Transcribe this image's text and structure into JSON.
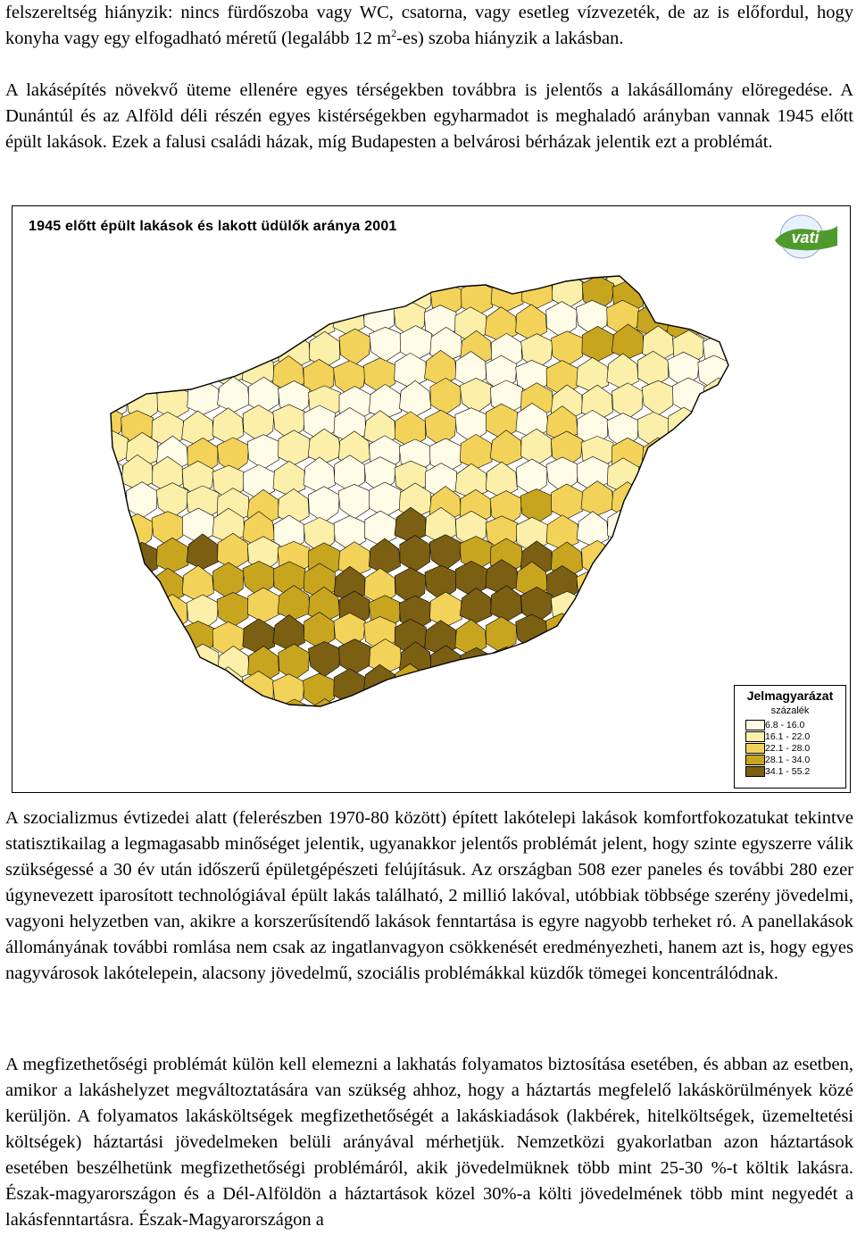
{
  "paragraphs": {
    "p1_a": "felszereltség hiányzik: nincs fürdőszoba vagy WC, csatorna, vagy esetleg vízvezeték, de az is előfordul, hogy konyha vagy egy elfogadható méretű (legalább 12 m",
    "p1_sup": "2",
    "p1_b": "-es) szoba hiányzik a lakásban.",
    "p2": "A lakásépítés növekvő üteme ellenére egyes térségekben továbbra is jelentős a lakásállomány elöregedése. A Dunántúl és az Alföld déli részén egyes kistérségekben egyharmadot is meghaladó arányban vannak 1945 előtt épült lakások. Ezek a falusi családi házak, míg Budapesten a belvárosi bérházak jelentik ezt a problémát.",
    "p3": "A szocializmus évtizedei alatt (felerészben 1970-80 között) épített lakótelepi lakások komfortfokozatukat tekintve statisztikailag a legmagasabb minőséget jelentik, ugyanakkor jelentős problémát jelent, hogy szinte egyszerre válik szükségessé a 30 év után időszerű épületgépészeti felújításuk. Az országban 508 ezer paneles és további 280 ezer úgynevezett iparosított technológiával épült lakás található, 2 millió lakóval, utóbbiak többsége szerény jövedelmi, vagyoni helyzetben van, akikre a korszerűsítendő lakások fenntartása is egyre nagyobb terheket ró. A panellakások állományának további romlása nem csak az ingatlanvagyon csökkenését eredményezheti, hanem azt is, hogy egyes nagyvárosok lakótelepein, alacsony jövedelmű, szociális problémákkal küzdők tömegei koncentrálódnak.",
    "p4": "A megfizethetőségi problémát külön kell elemezni a lakhatás folyamatos biztosítása esetében, és abban az esetben, amikor a lakáshelyzet megváltoztatására van szükség ahhoz, hogy a háztartás megfelelő lakáskörülmények közé kerüljön. A folyamatos lakásköltségek megfizethetőségét a lakáskiadások (lakbérek, hitelköltségek, üzemeltetési költségek) háztartási jövedelmeken belüli arányával mérhetjük. Nemzetközi gyakorlatban azon háztartások esetében beszélhetünk megfizethetőségi problémáról, akik jövedelmüknek több mint 25-30 %-t költik lakásra. Észak-magyarországon és a Dél-Alföldön a háztartások közel 30%-a költi jövedelmének több mint negyedét a lakásfenntartásra. Észak-Magyarországon a"
  },
  "map": {
    "title": "1945 előtt épült lakások és lakott üdülők aránya 2001",
    "logo_text": "vati",
    "legend": {
      "title": "Jelmagyarázat",
      "unit": "százalék",
      "classes": [
        {
          "label": "6.8 - 16.0",
          "color": "#fefbe6"
        },
        {
          "label": "16.1 - 22.0",
          "color": "#fbefaa"
        },
        {
          "label": "22.1 - 28.0",
          "color": "#f3d259"
        },
        {
          "label": "28.1 - 34.0",
          "color": "#c7a51e"
        },
        {
          "label": "34.1 - 55.2",
          "color": "#7b5f12"
        }
      ]
    }
  }
}
